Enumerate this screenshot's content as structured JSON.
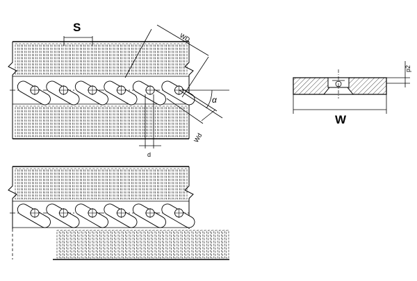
{
  "labels": {
    "pitch": "S",
    "width": "W",
    "wire_diameter_upper": "WD",
    "wire_diameter_lower": "Wd",
    "rod_diameter": "d",
    "thickness": "p2",
    "angle": "α"
  },
  "colors": {
    "line": "#000000",
    "background": "#ffffff",
    "hatch": "#000000"
  }
}
